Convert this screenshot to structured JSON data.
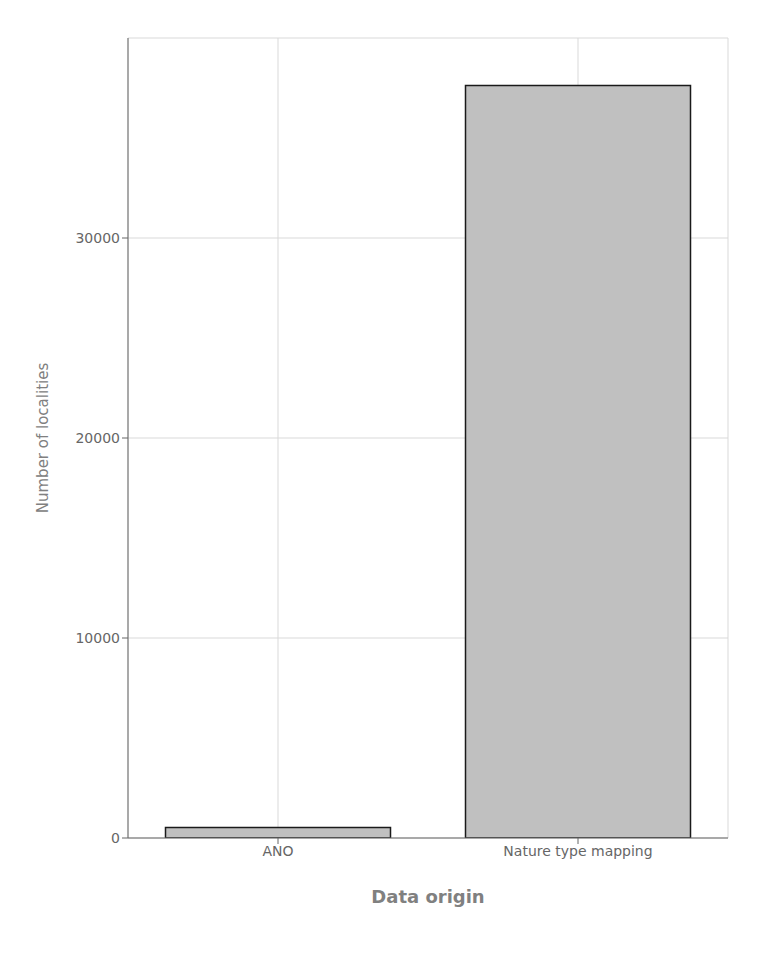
{
  "chart_data": {
    "type": "bar",
    "categories": [
      "ANO",
      "Nature type mapping"
    ],
    "values": [
      526,
      37623
    ],
    "color": "#c0c0c0",
    "xlabel": "Data origin",
    "ylabel": "Number of localities",
    "ylim": [
      0,
      40000
    ],
    "yticks": [
      0,
      10000,
      20000,
      30000
    ],
    "grid": true
  }
}
